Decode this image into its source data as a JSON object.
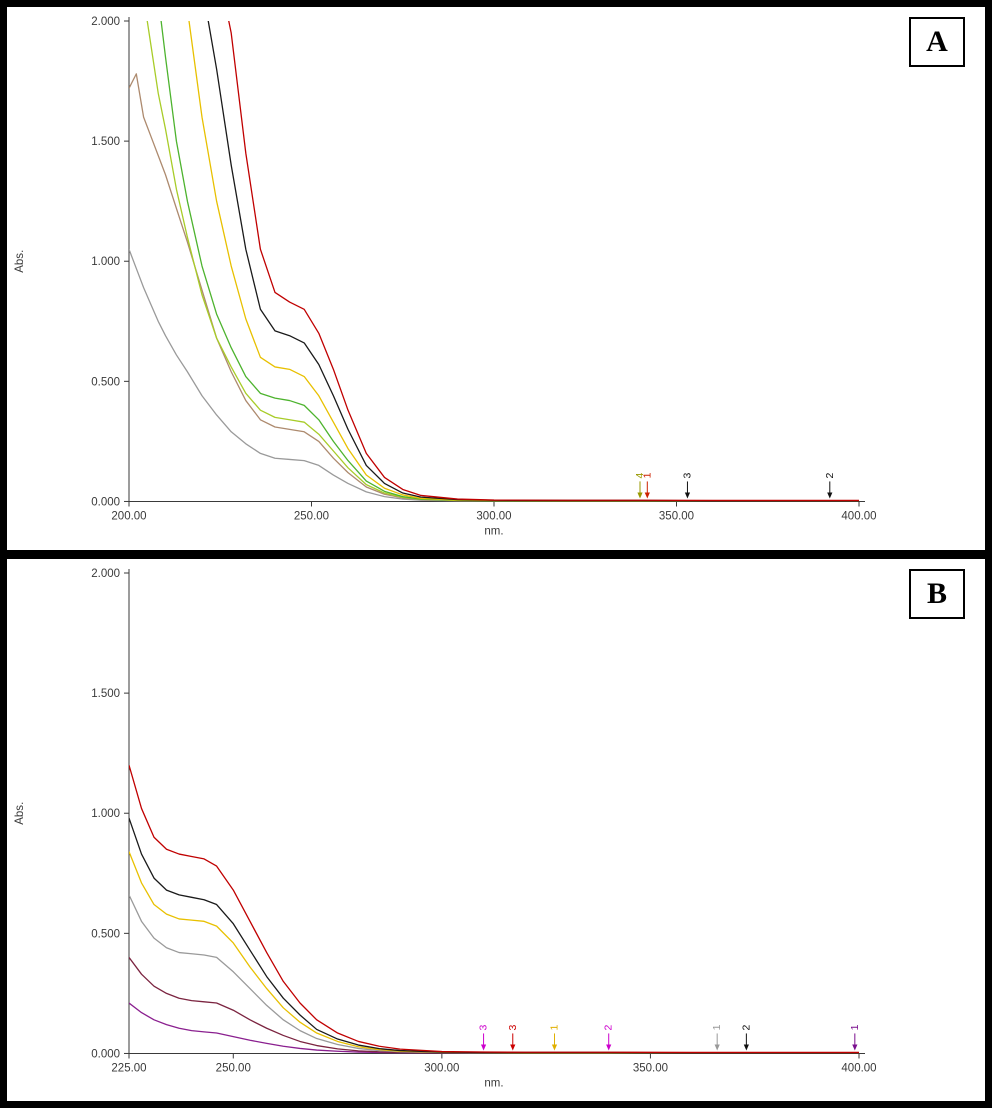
{
  "colors": {
    "frame": "#000000",
    "axis": "#3a3a3a",
    "background": "#ffffff"
  },
  "chart_data": [
    {
      "type": "line",
      "panel_label": "A",
      "ylabel": "Abs.",
      "xlabel": "nm.",
      "xlim": [
        200,
        400
      ],
      "ylim": [
        0,
        2
      ],
      "x_ticks": [
        200,
        250,
        300,
        350,
        400
      ],
      "x_tick_labels": [
        "200.00",
        "250.00",
        "300.00",
        "350.00",
        "400.00"
      ],
      "y_ticks": [
        0,
        0.5,
        1,
        1.5,
        2
      ],
      "y_tick_labels": [
        "0.000",
        "0.500",
        "1.000",
        "1.500",
        "2.000"
      ],
      "grid": false,
      "legend": "none",
      "x_sample": [
        200,
        202,
        204,
        206,
        208,
        210,
        213,
        216,
        220,
        224,
        228,
        232,
        236,
        240,
        244,
        248,
        252,
        256,
        260,
        265,
        270,
        275,
        280,
        290,
        300,
        320,
        340,
        360,
        380,
        400
      ],
      "series": [
        {
          "name": "red",
          "color": "#c00000",
          "values": [
            2.6,
            2.6,
            2.6,
            2.6,
            2.6,
            2.6,
            2.6,
            2.6,
            2.5,
            2.25,
            1.95,
            1.45,
            1.05,
            0.87,
            0.83,
            0.8,
            0.7,
            0.55,
            0.38,
            0.2,
            0.1,
            0.05,
            0.025,
            0.01,
            0.006,
            0.005,
            0.005,
            0.004,
            0.004,
            0.004
          ]
        },
        {
          "name": "black",
          "color": "#1a1a1a",
          "values": [
            2.6,
            2.6,
            2.6,
            2.6,
            2.6,
            2.6,
            2.6,
            2.5,
            2.15,
            1.8,
            1.4,
            1.05,
            0.8,
            0.71,
            0.69,
            0.66,
            0.57,
            0.44,
            0.3,
            0.15,
            0.075,
            0.035,
            0.018,
            0.008,
            0.005,
            0.004,
            0.004,
            0.003,
            0.003,
            0.003
          ]
        },
        {
          "name": "yellow",
          "color": "#e8c000",
          "values": [
            2.6,
            2.6,
            2.6,
            2.6,
            2.6,
            2.6,
            2.45,
            2.05,
            1.6,
            1.25,
            0.98,
            0.76,
            0.6,
            0.56,
            0.55,
            0.52,
            0.44,
            0.33,
            0.22,
            0.11,
            0.055,
            0.027,
            0.013,
            0.006,
            0.004,
            0.003,
            0.003,
            0.003,
            0.003,
            0.003
          ]
        },
        {
          "name": "green",
          "color": "#4db32e",
          "values": [
            2.6,
            2.6,
            2.6,
            2.45,
            2.1,
            1.85,
            1.5,
            1.25,
            0.98,
            0.78,
            0.64,
            0.52,
            0.45,
            0.43,
            0.42,
            0.4,
            0.34,
            0.25,
            0.17,
            0.085,
            0.042,
            0.02,
            0.01,
            0.005,
            0.003,
            0.003,
            0.003,
            0.002,
            0.002,
            0.002
          ]
        },
        {
          "name": "yellow-green",
          "color": "#a8cc28",
          "values": [
            2.6,
            2.45,
            2.1,
            1.9,
            1.7,
            1.55,
            1.3,
            1.1,
            0.86,
            0.68,
            0.56,
            0.45,
            0.38,
            0.35,
            0.34,
            0.33,
            0.28,
            0.21,
            0.14,
            0.07,
            0.035,
            0.017,
            0.009,
            0.004,
            0.003,
            0.003,
            0.002,
            0.002,
            0.002,
            0.002
          ]
        },
        {
          "name": "tan",
          "color": "#ad8a6e",
          "values": [
            1.72,
            1.78,
            1.6,
            1.52,
            1.44,
            1.36,
            1.22,
            1.08,
            0.88,
            0.68,
            0.54,
            0.42,
            0.34,
            0.31,
            0.3,
            0.29,
            0.25,
            0.18,
            0.12,
            0.06,
            0.03,
            0.015,
            0.008,
            0.004,
            0.003,
            0.002,
            0.002,
            0.002,
            0.002,
            0.002
          ]
        },
        {
          "name": "gray",
          "color": "#9a9a9a",
          "values": [
            1.05,
            0.97,
            0.89,
            0.82,
            0.75,
            0.69,
            0.61,
            0.54,
            0.44,
            0.36,
            0.29,
            0.24,
            0.2,
            0.18,
            0.175,
            0.17,
            0.15,
            0.11,
            0.075,
            0.04,
            0.02,
            0.01,
            0.005,
            0.003,
            0.002,
            0.002,
            0.002,
            0.002,
            0.002,
            0.002
          ]
        }
      ],
      "annotations": [
        {
          "x": 340,
          "label": "4",
          "color": "#999900"
        },
        {
          "x": 342,
          "label": "1",
          "color": "#cc2200"
        },
        {
          "x": 353,
          "label": "3",
          "color": "#111111"
        },
        {
          "x": 392,
          "label": "2",
          "color": "#111111"
        }
      ]
    },
    {
      "type": "line",
      "panel_label": "B",
      "ylabel": "Abs.",
      "xlabel": "nm.",
      "xlim": [
        225,
        400
      ],
      "ylim": [
        0,
        2
      ],
      "x_ticks": [
        225,
        250,
        300,
        350,
        400
      ],
      "x_tick_labels": [
        "225.00",
        "250.00",
        "300.00",
        "350.00",
        "400.00"
      ],
      "y_ticks": [
        0,
        0.5,
        1,
        1.5,
        2
      ],
      "y_tick_labels": [
        "0.000",
        "0.500",
        "1.000",
        "1.500",
        "2.000"
      ],
      "grid": false,
      "legend": "none",
      "x_sample": [
        225,
        228,
        231,
        234,
        237,
        240,
        243,
        246,
        250,
        254,
        258,
        262,
        266,
        270,
        275,
        280,
        285,
        290,
        300,
        310,
        320,
        340,
        360,
        380,
        400
      ],
      "series": [
        {
          "name": "red",
          "color": "#c00000",
          "values": [
            1.2,
            1.02,
            0.9,
            0.85,
            0.83,
            0.82,
            0.81,
            0.78,
            0.68,
            0.55,
            0.42,
            0.3,
            0.21,
            0.14,
            0.085,
            0.05,
            0.03,
            0.018,
            0.008,
            0.006,
            0.005,
            0.005,
            0.004,
            0.004,
            0.004
          ]
        },
        {
          "name": "black",
          "color": "#1a1a1a",
          "values": [
            0.98,
            0.83,
            0.73,
            0.68,
            0.66,
            0.65,
            0.64,
            0.62,
            0.54,
            0.43,
            0.32,
            0.23,
            0.16,
            0.1,
            0.06,
            0.035,
            0.02,
            0.012,
            0.006,
            0.004,
            0.004,
            0.004,
            0.003,
            0.003,
            0.003
          ]
        },
        {
          "name": "yellow",
          "color": "#e8c000",
          "values": [
            0.84,
            0.71,
            0.62,
            0.58,
            0.56,
            0.555,
            0.55,
            0.53,
            0.46,
            0.36,
            0.27,
            0.19,
            0.13,
            0.085,
            0.05,
            0.028,
            0.016,
            0.009,
            0.005,
            0.004,
            0.003,
            0.003,
            0.003,
            0.003,
            0.003
          ]
        },
        {
          "name": "gray",
          "color": "#9a9a9a",
          "values": [
            0.66,
            0.55,
            0.48,
            0.44,
            0.42,
            0.415,
            0.41,
            0.4,
            0.34,
            0.27,
            0.2,
            0.14,
            0.095,
            0.062,
            0.037,
            0.021,
            0.012,
            0.007,
            0.004,
            0.003,
            0.003,
            0.002,
            0.002,
            0.002,
            0.002
          ]
        },
        {
          "name": "maroon",
          "color": "#7b2440",
          "values": [
            0.4,
            0.33,
            0.28,
            0.25,
            0.23,
            0.22,
            0.215,
            0.21,
            0.18,
            0.14,
            0.105,
            0.075,
            0.05,
            0.033,
            0.019,
            0.011,
            0.007,
            0.004,
            0.003,
            0.002,
            0.002,
            0.002,
            0.002,
            0.002,
            0.002
          ]
        },
        {
          "name": "purple",
          "color": "#8a1f8f",
          "values": [
            0.21,
            0.17,
            0.14,
            0.12,
            0.105,
            0.095,
            0.09,
            0.085,
            0.07,
            0.055,
            0.042,
            0.03,
            0.021,
            0.014,
            0.009,
            0.006,
            0.004,
            0.003,
            0.002,
            0.002,
            0.002,
            0.002,
            0.002,
            0.002,
            0.002
          ]
        }
      ],
      "annotations": [
        {
          "x": 310,
          "label": "3",
          "color": "#cc00cc"
        },
        {
          "x": 317,
          "label": "3",
          "color": "#cc0000"
        },
        {
          "x": 327,
          "label": "1",
          "color": "#e0b000"
        },
        {
          "x": 340,
          "label": "2",
          "color": "#cc00cc"
        },
        {
          "x": 366,
          "label": "1",
          "color": "#999999"
        },
        {
          "x": 373,
          "label": "2",
          "color": "#111111"
        },
        {
          "x": 399,
          "label": "1",
          "color": "#7a0f8e"
        }
      ]
    }
  ]
}
